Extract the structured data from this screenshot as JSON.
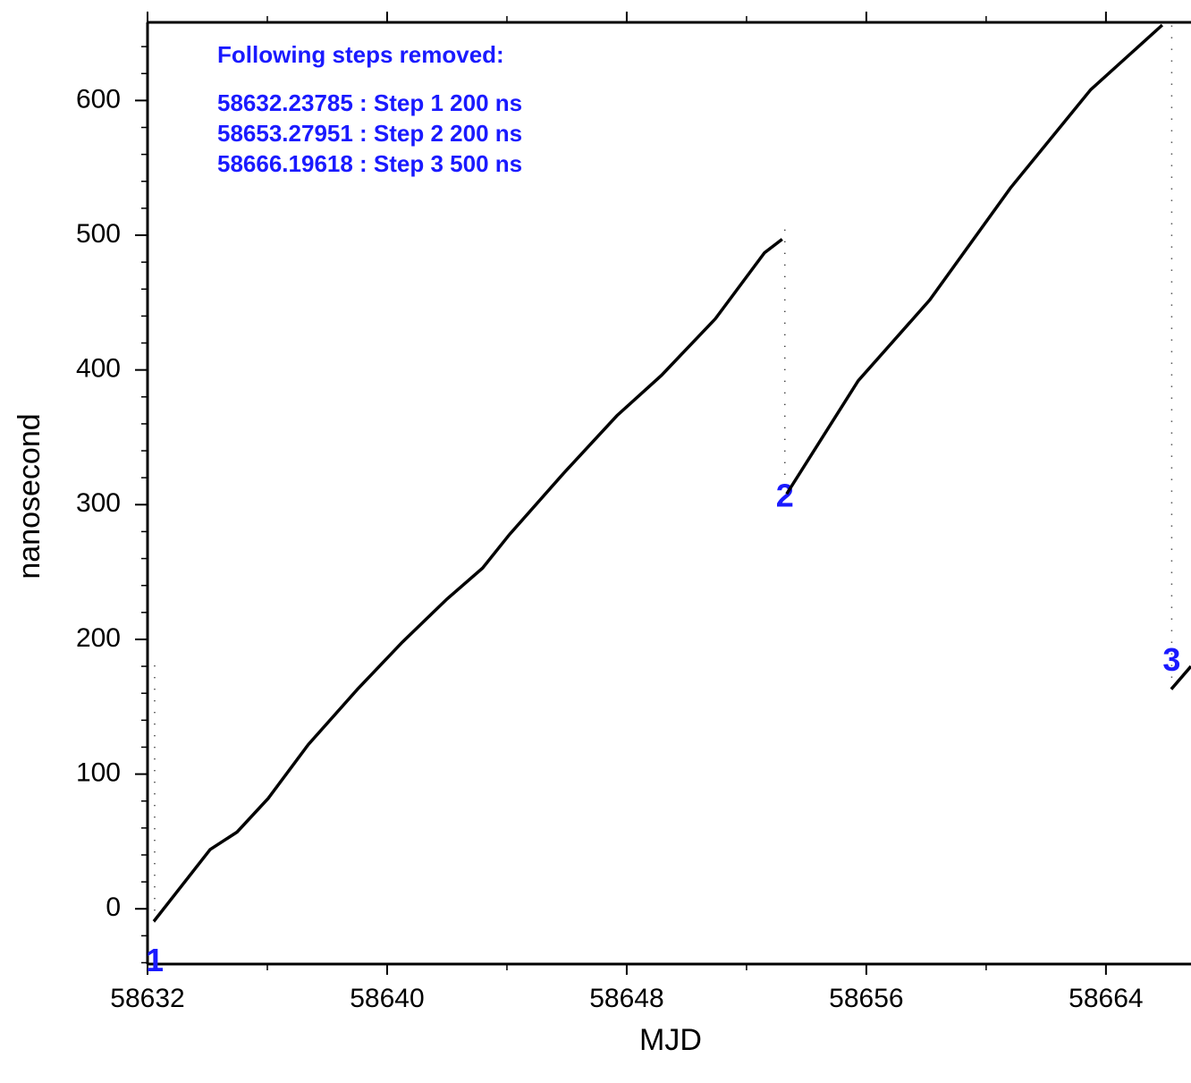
{
  "chart_data": {
    "type": "line",
    "xlabel": "MJD",
    "ylabel": "nanosecond",
    "xlim": [
      58632,
      58666.84
    ],
    "ylim": [
      -41,
      658
    ],
    "xticks": [
      58632,
      58640,
      58648,
      58656,
      58664
    ],
    "yticks": [
      0,
      100,
      200,
      300,
      400,
      500,
      600
    ],
    "xminorticks": [
      58636,
      58644,
      58652,
      58660
    ],
    "yminorticks": [
      -40,
      -20,
      20,
      40,
      60,
      80,
      120,
      140,
      160,
      180,
      220,
      240,
      260,
      280,
      320,
      340,
      360,
      380,
      420,
      440,
      460,
      480,
      520,
      540,
      560,
      580,
      620,
      640
    ],
    "annotations": [
      "Following steps removed:",
      "58632.23785 : Step 1 200 ns",
      "58653.27951 : Step 2 200 ns",
      "58666.19618 : Step 3 500 ns"
    ],
    "steps": [
      {
        "label": "1",
        "mjd": 58632.23785,
        "ymin": -10,
        "ymax": 185
      },
      {
        "label": "2",
        "mjd": 58653.27951,
        "ymin": 305,
        "ymax": 505
      },
      {
        "label": "3",
        "mjd": 58666.19618,
        "ymin": 163,
        "ymax": 660
      }
    ],
    "series": [
      {
        "color": "#000000",
        "x": [
          58632.21,
          58634.09,
          58634.99,
          58636.03,
          58637.37,
          58639.01,
          58640.51,
          58642.0,
          58643.19,
          58644.09,
          58645.88,
          58647.67,
          58649.16,
          58650.96,
          58652.6,
          58653.19,
          null,
          58653.34,
          58655.73,
          58658.12,
          58660.81,
          58663.49,
          58665.88,
          null,
          58666.18,
          58666.84
        ],
        "values": [
          -9.3,
          44,
          57,
          82,
          122,
          163,
          198,
          230,
          253,
          278,
          323,
          366,
          396,
          438,
          487,
          497,
          null,
          308,
          392,
          452,
          535,
          608,
          656,
          null,
          163,
          180
        ]
      }
    ]
  }
}
